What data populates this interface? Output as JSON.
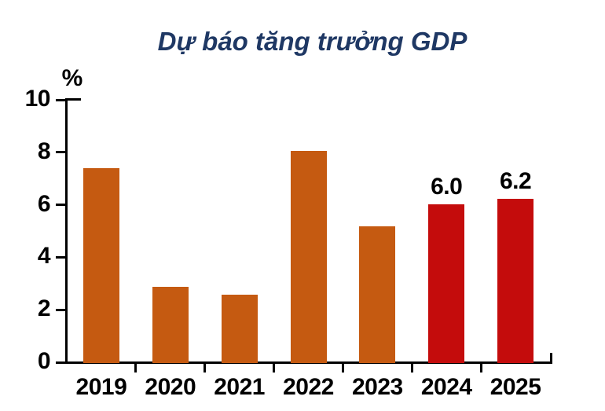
{
  "page": {
    "background_color": "#FFFFFF"
  },
  "chart_data": {
    "type": "bar",
    "title": "Dự báo tăng trưởng GDP",
    "title_color": "#1F3864",
    "unit_label": "%",
    "xlabel": "",
    "ylabel": "%",
    "categories": [
      "2019",
      "2020",
      "2021",
      "2022",
      "2023",
      "2024",
      "2025"
    ],
    "values": [
      7.36,
      2.85,
      2.55,
      8.02,
      5.14,
      6.0,
      6.2
    ],
    "bar_colors": [
      "#C55A11",
      "#C55A11",
      "#C55A11",
      "#C55A11",
      "#C55A11",
      "#C40C0C",
      "#C40C0C"
    ],
    "data_labels": [
      "",
      "",
      "",
      "",
      "",
      "6.0",
      "6.2"
    ],
    "ylim": [
      0,
      10
    ],
    "yticks": [
      0,
      2,
      4,
      6,
      8,
      10
    ],
    "grid": false,
    "legend": false,
    "axis_color": "#000000",
    "label_color": "#000000"
  }
}
